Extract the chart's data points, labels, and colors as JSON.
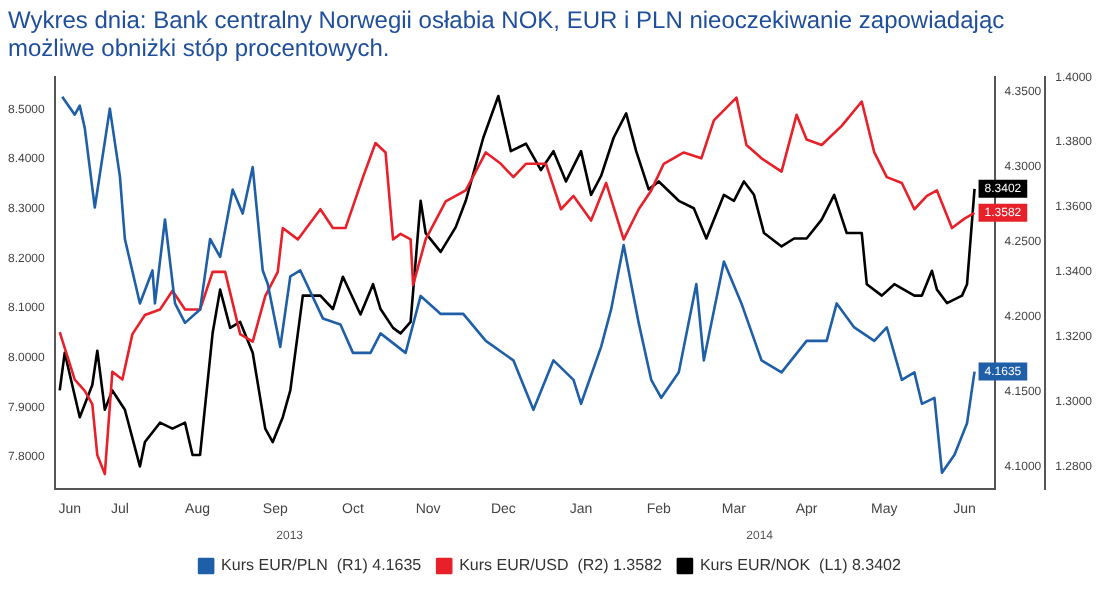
{
  "chart_data": {
    "type": "line",
    "title": "Wykres dnia: Bank centralny Norwegii osłabia NOK, EUR i PLN nieoczekiwanie zapowiadając możliwe obniżki stóp procentowych.",
    "annotations": [
      "2013",
      "2014"
    ],
    "xlim": [
      "2013-06-19",
      "2014-06-29"
    ],
    "xticks": [
      {
        "value": "2013-06-25",
        "label": "Jun"
      },
      {
        "value": "2013-07-15",
        "label": "Jul"
      },
      {
        "value": "2013-08-15",
        "label": "Aug"
      },
      {
        "value": "2013-09-15",
        "label": "Sep"
      },
      {
        "value": "2013-10-16",
        "label": "Oct"
      },
      {
        "value": "2013-11-15",
        "label": "Nov"
      },
      {
        "value": "2013-12-15",
        "label": "Dec"
      },
      {
        "value": "2014-01-15",
        "label": "Jan"
      },
      {
        "value": "2014-02-15",
        "label": "Feb"
      },
      {
        "value": "2014-03-17",
        "label": "Mar"
      },
      {
        "value": "2014-04-15",
        "label": "Apr"
      },
      {
        "value": "2014-05-16",
        "label": "May"
      },
      {
        "value": "2014-06-17",
        "label": "Jun"
      }
    ],
    "ylim": [
      7.735,
      8.565
    ],
    "yticks": [
      {
        "value": 7.8,
        "label": "7.8000"
      },
      {
        "value": 7.9,
        "label": "7.9000"
      },
      {
        "value": 8.0,
        "label": "8.0000"
      },
      {
        "value": 8.1,
        "label": "8.1000"
      },
      {
        "value": 8.2,
        "label": "8.2000"
      },
      {
        "value": 8.3,
        "label": "8.3000"
      },
      {
        "value": 8.4,
        "label": "8.4000"
      },
      {
        "value": 8.5,
        "label": "8.5000"
      }
    ],
    "y2lim": [
      4.085,
      4.36
    ],
    "y2ticks": [
      {
        "value": 4.1,
        "label": "4.1000"
      },
      {
        "value": 4.15,
        "label": "4.1500"
      },
      {
        "value": 4.2,
        "label": "4.2000"
      },
      {
        "value": 4.25,
        "label": "4.2500"
      },
      {
        "value": 4.3,
        "label": "4.3000"
      },
      {
        "value": 4.35,
        "label": "4.3500"
      }
    ],
    "y3lim": [
      1.273,
      1.4
    ],
    "y3ticks": [
      {
        "value": 1.28,
        "label": "1.2800"
      },
      {
        "value": 1.3,
        "label": "1.3000"
      },
      {
        "value": 1.32,
        "label": "1.3200"
      },
      {
        "value": 1.34,
        "label": "1.3400"
      },
      {
        "value": 1.36,
        "label": "1.3600"
      },
      {
        "value": 1.38,
        "label": "1.3800"
      },
      {
        "value": 1.4,
        "label": "1.4000"
      }
    ],
    "legend": "bottom",
    "series": [
      {
        "name": "Kurs EUR/PLN  (R1) 4.1635",
        "color": "#1f5fa8",
        "axis": "y2",
        "x": [
          "2013-06-22",
          "2013-06-27",
          "2013-06-29",
          "2013-07-01",
          "2013-07-05",
          "2013-07-11",
          "2013-07-15",
          "2013-07-17",
          "2013-07-23",
          "2013-07-28",
          "2013-07-29",
          "2013-08-02",
          "2013-08-06",
          "2013-08-10",
          "2013-08-16",
          "2013-08-20",
          "2013-08-24",
          "2013-08-29",
          "2013-09-02",
          "2013-09-06",
          "2013-09-10",
          "2013-09-12",
          "2013-09-17",
          "2013-09-21",
          "2013-09-25",
          "2013-10-04",
          "2013-10-11",
          "2013-10-16",
          "2013-10-23",
          "2013-10-27",
          "2013-11-06",
          "2013-11-12",
          "2013-11-20",
          "2013-11-29",
          "2013-12-08",
          "2013-12-19",
          "2013-12-27",
          "2014-01-04",
          "2014-01-12",
          "2014-01-15",
          "2014-01-23",
          "2014-01-27",
          "2014-02-01",
          "2014-02-07",
          "2014-02-12",
          "2014-02-16",
          "2014-02-23",
          "2014-03-02",
          "2014-03-05",
          "2014-03-13",
          "2014-03-20",
          "2014-03-28",
          "2014-04-05",
          "2014-04-15",
          "2014-04-23",
          "2014-04-27",
          "2014-05-04",
          "2014-05-12",
          "2014-05-17",
          "2014-05-23",
          "2014-05-28",
          "2014-05-31",
          "2014-06-05",
          "2014-06-08",
          "2014-06-13",
          "2014-06-18",
          "2014-06-21"
        ],
        "values": [
          4.347,
          4.335,
          4.341,
          4.326,
          4.273,
          4.339,
          4.294,
          4.252,
          4.209,
          4.231,
          4.209,
          4.265,
          4.209,
          4.196,
          4.205,
          4.252,
          4.24,
          4.285,
          4.269,
          4.3,
          4.231,
          4.222,
          4.18,
          4.227,
          4.231,
          4.199,
          4.195,
          4.176,
          4.176,
          4.189,
          4.176,
          4.214,
          4.202,
          4.202,
          4.184,
          4.171,
          4.138,
          4.171,
          4.158,
          4.142,
          4.18,
          4.205,
          4.248,
          4.196,
          4.158,
          4.146,
          4.163,
          4.222,
          4.171,
          4.237,
          4.209,
          4.171,
          4.163,
          4.184,
          4.184,
          4.209,
          4.193,
          4.184,
          4.193,
          4.158,
          4.163,
          4.142,
          4.146,
          4.096,
          4.108,
          4.129,
          4.1635
        ],
        "value_labels": [
          null,
          null,
          null,
          null,
          null,
          null,
          null,
          null,
          null,
          null,
          null,
          null,
          null,
          null,
          null,
          null,
          null,
          null,
          null,
          null,
          null,
          null,
          null,
          null,
          null,
          null,
          null,
          null,
          null,
          null,
          null,
          null,
          null,
          null,
          null,
          null,
          null,
          null,
          null,
          null,
          null,
          null,
          null,
          null,
          null,
          null,
          null,
          null,
          null,
          null,
          null,
          null,
          null,
          null,
          null,
          null,
          null,
          null,
          null,
          null,
          null,
          null,
          null,
          null,
          null,
          null,
          "4.1635"
        ]
      },
      {
        "name": "Kurs EUR/USD  (R2) 1.3582",
        "color": "#e8202a",
        "axis": "y3",
        "x": [
          "2013-06-21",
          "2013-06-27",
          "2013-07-01",
          "2013-07-04",
          "2013-07-06",
          "2013-07-09",
          "2013-07-12",
          "2013-07-16",
          "2013-07-20",
          "2013-07-25",
          "2013-07-31",
          "2013-08-05",
          "2013-08-10",
          "2013-08-16",
          "2013-08-21",
          "2013-08-26",
          "2013-09-01",
          "2013-09-06",
          "2013-09-11",
          "2013-09-16",
          "2013-09-18",
          "2013-09-24",
          "2013-10-03",
          "2013-10-08",
          "2013-10-13",
          "2013-10-20",
          "2013-10-25",
          "2013-10-29",
          "2013-11-01",
          "2013-11-04",
          "2013-11-08",
          "2013-11-09",
          "2013-11-14",
          "2013-11-22",
          "2013-11-30",
          "2013-12-08",
          "2013-12-14",
          "2013-12-19",
          "2013-12-24",
          "2014-01-01",
          "2014-01-07",
          "2014-01-12",
          "2014-01-19",
          "2014-01-25",
          "2014-02-01",
          "2014-02-07",
          "2014-02-12",
          "2014-02-17",
          "2014-02-25",
          "2014-03-04",
          "2014-03-09",
          "2014-03-18",
          "2014-03-22",
          "2014-03-28",
          "2014-04-05",
          "2014-04-11",
          "2014-04-15",
          "2014-04-21",
          "2014-04-29",
          "2014-05-07",
          "2014-05-12",
          "2014-05-17",
          "2014-05-23",
          "2014-05-28",
          "2014-06-02",
          "2014-06-06",
          "2014-06-12",
          "2014-06-17",
          "2014-06-21"
        ],
        "values": [
          1.3214,
          1.3068,
          1.3033,
          1.2992,
          1.2835,
          1.2777,
          1.3092,
          1.3068,
          1.3208,
          1.3267,
          1.3284,
          1.3342,
          1.3284,
          1.3284,
          1.34,
          1.34,
          1.3208,
          1.3185,
          1.3325,
          1.34,
          1.3535,
          1.35,
          1.3593,
          1.3535,
          1.3535,
          1.3692,
          1.3797,
          1.3768,
          1.35,
          1.3517,
          1.35,
          1.336,
          1.35,
          1.3617,
          1.3651,
          1.3768,
          1.3733,
          1.3692,
          1.3733,
          1.3733,
          1.3593,
          1.3634,
          1.3558,
          1.3674,
          1.35,
          1.3593,
          1.3651,
          1.3733,
          1.3768,
          1.375,
          1.3867,
          1.3937,
          1.3791,
          1.375,
          1.3709,
          1.3884,
          1.3808,
          1.3791,
          1.385,
          1.3925,
          1.3768,
          1.3692,
          1.3674,
          1.3593,
          1.3634,
          1.3651,
          1.3535,
          1.3564,
          1.3582
        ],
        "value_labels": [
          null,
          null,
          null,
          null,
          null,
          null,
          null,
          null,
          null,
          null,
          null,
          null,
          null,
          null,
          null,
          null,
          null,
          null,
          null,
          null,
          null,
          null,
          null,
          null,
          null,
          null,
          null,
          null,
          null,
          null,
          null,
          null,
          null,
          null,
          null,
          null,
          null,
          null,
          null,
          null,
          null,
          null,
          null,
          null,
          null,
          null,
          null,
          null,
          null,
          null,
          null,
          null,
          null,
          null,
          null,
          null,
          null,
          null,
          null,
          null,
          null,
          null,
          null,
          null,
          null,
          null,
          null,
          null,
          "1.3582"
        ]
      },
      {
        "name": "Kurs EUR/NOK  (L1) 8.3402",
        "color": "#000000",
        "axis": "y",
        "x": [
          "2013-06-21",
          "2013-06-23",
          "2013-06-29",
          "2013-07-04",
          "2013-07-06",
          "2013-07-09",
          "2013-07-12",
          "2013-07-17",
          "2013-07-23",
          "2013-07-25",
          "2013-07-31",
          "2013-08-05",
          "2013-08-10",
          "2013-08-13",
          "2013-08-16",
          "2013-08-21",
          "2013-08-24",
          "2013-08-28",
          "2013-09-01",
          "2013-09-06",
          "2013-09-11",
          "2013-09-14",
          "2013-09-18",
          "2013-09-21",
          "2013-09-26",
          "2013-10-03",
          "2013-10-08",
          "2013-10-12",
          "2013-10-19",
          "2013-10-24",
          "2013-10-27",
          "2013-11-01",
          "2013-11-04",
          "2013-11-08",
          "2013-11-12",
          "2013-11-14",
          "2013-11-20",
          "2013-11-26",
          "2013-11-30",
          "2013-12-07",
          "2013-12-13",
          "2013-12-18",
          "2013-12-24",
          "2013-12-30",
          "2014-01-04",
          "2014-01-09",
          "2014-01-15",
          "2014-01-19",
          "2014-01-23",
          "2014-01-28",
          "2014-02-02",
          "2014-02-06",
          "2014-02-11",
          "2014-02-15",
          "2014-02-23",
          "2014-03-01",
          "2014-03-06",
          "2014-03-13",
          "2014-03-17",
          "2014-03-21",
          "2014-03-25",
          "2014-03-29",
          "2014-04-05",
          "2014-04-10",
          "2014-04-15",
          "2014-04-21",
          "2014-04-26",
          "2014-05-01",
          "2014-05-07",
          "2014-05-09",
          "2014-05-15",
          "2014-05-20",
          "2014-05-28",
          "2014-05-31",
          "2014-06-04",
          "2014-06-06",
          "2014-06-10",
          "2014-06-16",
          "2014-06-18",
          "2014-06-21"
        ],
        "values": [
          7.934,
          8.01,
          7.88,
          7.945,
          8.014,
          7.895,
          7.934,
          7.895,
          7.781,
          7.83,
          7.869,
          7.857,
          7.869,
          7.804,
          7.804,
          8.049,
          8.137,
          8.06,
          8.072,
          8.01,
          7.857,
          7.83,
          7.88,
          7.934,
          8.125,
          8.125,
          8.098,
          8.163,
          8.087,
          8.148,
          8.098,
          8.06,
          8.049,
          8.072,
          8.316,
          8.251,
          8.213,
          8.263,
          8.316,
          8.443,
          8.527,
          8.416,
          8.431,
          8.378,
          8.416,
          8.355,
          8.416,
          8.328,
          8.366,
          8.443,
          8.492,
          8.416,
          8.339,
          8.355,
          8.316,
          8.301,
          8.24,
          8.328,
          8.316,
          8.355,
          8.328,
          8.251,
          8.224,
          8.24,
          8.24,
          8.278,
          8.328,
          8.251,
          8.251,
          8.148,
          8.125,
          8.148,
          8.125,
          8.125,
          8.175,
          8.137,
          8.11,
          8.125,
          8.148,
          8.3402
        ],
        "value_labels": [
          null,
          null,
          null,
          null,
          null,
          null,
          null,
          null,
          null,
          null,
          null,
          null,
          null,
          null,
          null,
          null,
          null,
          null,
          null,
          null,
          null,
          null,
          null,
          null,
          null,
          null,
          null,
          null,
          null,
          null,
          null,
          null,
          null,
          null,
          null,
          null,
          null,
          null,
          null,
          null,
          null,
          null,
          null,
          null,
          null,
          null,
          null,
          null,
          null,
          null,
          null,
          null,
          null,
          null,
          null,
          null,
          null,
          null,
          null,
          null,
          null,
          null,
          null,
          null,
          null,
          null,
          null,
          null,
          null,
          null,
          null,
          null,
          null,
          null,
          null,
          null,
          null,
          null,
          null,
          "8.3402"
        ]
      }
    ]
  }
}
